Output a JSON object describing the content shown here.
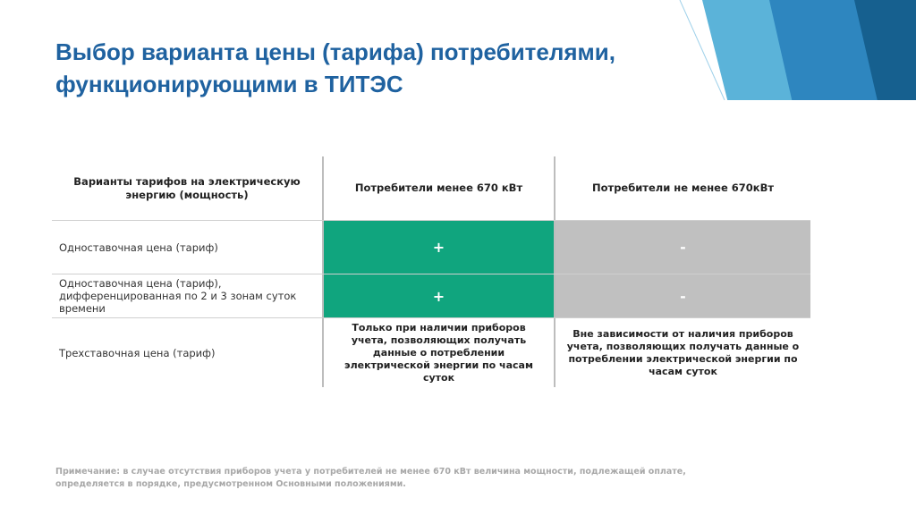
{
  "slide": {
    "title": "Выбор варианта цены (тарифа) потребителями, функционирующими в ТИТЭС",
    "accent_color": "#1f62a0",
    "deco_colors": [
      "#5bb3d9",
      "#2e86bf",
      "#16608f",
      "#bfe3f2"
    ]
  },
  "table": {
    "headers": [
      "Варианты тарифов на электрическую энергию (мощность)",
      "Потребители менее 670 кВт",
      "Потребители не менее 670кВт"
    ],
    "rows": [
      {
        "label": "Одноставочная цена (тариф)",
        "col2": "+",
        "col3": "-"
      },
      {
        "label": "Одноставочная цена (тариф), дифференцированная по 2 и 3 зонам суток времени",
        "col2": "+",
        "col3": "-"
      },
      {
        "label": "Трехставочная цена (тариф)",
        "col2": "Только при наличии приборов учета, позволяющих получать данные о потреблении электрической энергии по часам суток",
        "col3": "Вне зависимости от наличия приборов учета, позволяющих получать данные о потреблении электрической энергии по часам суток"
      }
    ],
    "colors": {
      "plus_bg": "#10a57e",
      "minus_bg": "#c0c0c0"
    }
  },
  "note": "Примечание: в случае отсутствия приборов учета у потребителей не менее 670 кВт величина мощности, подлежащей оплате, определяется в порядке, предусмотренном Основными положениями."
}
